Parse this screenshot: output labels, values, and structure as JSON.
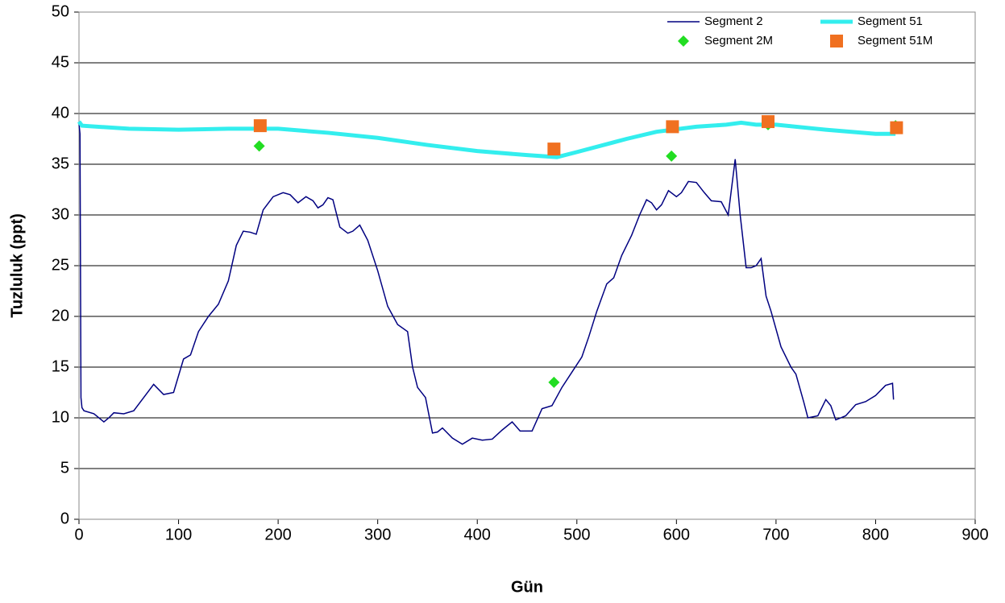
{
  "chart_data": {
    "type": "line",
    "xlabel": "Gün",
    "ylabel": "Tuzluluk (ppt)",
    "xlim": [
      0,
      900
    ],
    "xticks": [
      0,
      100,
      200,
      300,
      400,
      500,
      600,
      700,
      800,
      900
    ],
    "ylim": [
      0,
      50
    ],
    "yticks": [
      0,
      5,
      10,
      15,
      20,
      25,
      30,
      35,
      40,
      45,
      50
    ],
    "grid": true,
    "legend": "upper right",
    "series": [
      {
        "name": "Segment 2",
        "color": "#000080",
        "marker": "line",
        "x": [
          0,
          1,
          2,
          3,
          5,
          15,
          25,
          30,
          35,
          45,
          55,
          65,
          75,
          85,
          95,
          105,
          112,
          120,
          130,
          140,
          150,
          158,
          165,
          172,
          178,
          185,
          195,
          205,
          212,
          220,
          228,
          235,
          240,
          245,
          250,
          255,
          262,
          270,
          275,
          282,
          290,
          300,
          310,
          320,
          330,
          335,
          340,
          348,
          355,
          360,
          365,
          375,
          385,
          395,
          405,
          415,
          425,
          435,
          443,
          455,
          465,
          475,
          485,
          495,
          505,
          512,
          520,
          530,
          537,
          545,
          555,
          563,
          570,
          575,
          580,
          585,
          592,
          600,
          605,
          612,
          620,
          628,
          635,
          645,
          652,
          659,
          664,
          670,
          675,
          680,
          685,
          690,
          695,
          705,
          715,
          720,
          728,
          732,
          742,
          750,
          755,
          760,
          770,
          780,
          790,
          800,
          810,
          817,
          818
        ],
        "values": [
          39,
          38,
          12,
          11,
          10.7,
          10.4,
          9.6,
          10,
          10.5,
          10.4,
          10.7,
          12,
          13.3,
          12.3,
          12.5,
          15.8,
          16.2,
          18.5,
          20,
          21.2,
          23.5,
          27,
          28.4,
          28.3,
          28.1,
          30.5,
          31.8,
          32.2,
          32,
          31.2,
          31.8,
          31.4,
          30.7,
          31,
          31.7,
          31.5,
          28.8,
          28.2,
          28.4,
          29,
          27.5,
          24.5,
          21,
          19.2,
          18.5,
          15,
          13,
          12,
          8.5,
          8.6,
          9,
          8,
          7.4,
          8,
          7.8,
          7.9,
          8.8,
          9.6,
          8.7,
          8.7,
          10.9,
          11.2,
          13,
          14.5,
          16,
          18,
          20.5,
          23.2,
          23.8,
          26,
          28,
          30,
          31.5,
          31.2,
          30.5,
          31,
          32.4,
          31.8,
          32.2,
          33.3,
          33.2,
          32.2,
          31.4,
          31.3,
          30,
          35.5,
          30,
          24.8,
          24.8,
          25,
          25.7,
          22,
          20.5,
          17,
          15,
          14.3,
          11.5,
          10,
          10.2,
          11.8,
          11.2,
          9.8,
          10.2,
          11.3,
          11.6,
          12.2,
          13.2,
          13.4,
          11.8
        ]
      },
      {
        "name": "Segment 51",
        "color": "#33eeee",
        "marker": "line",
        "x": [
          0,
          3,
          50,
          100,
          150,
          200,
          250,
          300,
          350,
          400,
          450,
          480,
          500,
          550,
          580,
          620,
          650,
          665,
          680,
          700,
          750,
          800,
          820
        ],
        "values": [
          39.2,
          38.8,
          38.5,
          38.4,
          38.5,
          38.5,
          38.1,
          37.6,
          36.9,
          36.3,
          35.9,
          35.7,
          36.2,
          37.5,
          38.2,
          38.7,
          38.9,
          39.1,
          38.9,
          38.9,
          38.4,
          38,
          38
        ]
      },
      {
        "name": "Segment 2M",
        "color": "#22dd22",
        "marker": "diamond",
        "x": [
          181,
          477,
          595,
          692,
          820
        ],
        "values": [
          36.8,
          13.5,
          35.8,
          38.9,
          38.8
        ]
      },
      {
        "name": "Segment 51M",
        "color": "#f07020",
        "marker": "square",
        "x": [
          182,
          477,
          596,
          692,
          821
        ],
        "values": [
          38.8,
          36.5,
          38.7,
          39.2,
          38.6
        ]
      }
    ]
  }
}
